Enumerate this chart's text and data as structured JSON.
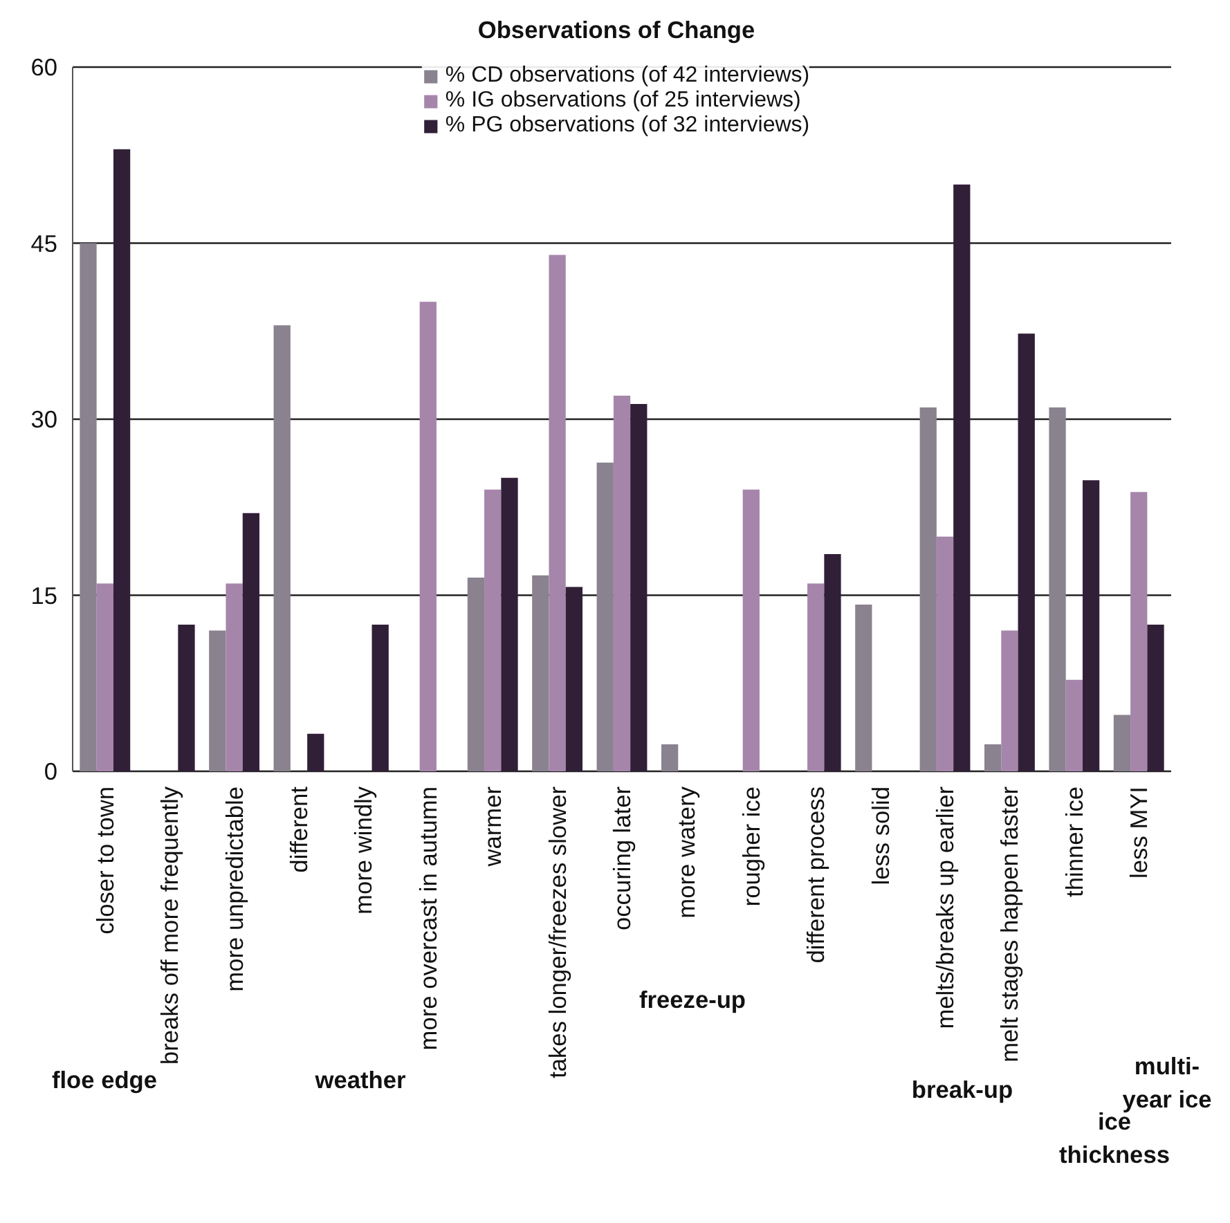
{
  "chart_data": {
    "type": "bar",
    "title": "Observations of Change",
    "categories": [
      "closer to town",
      "breaks off more frequently",
      "more unpredictable",
      "different",
      "more windly",
      "more overcast in autumn",
      "warmer",
      "takes longer/freezes slower",
      "occuring later",
      "more watery",
      "rougher ice",
      "different process",
      "less solid",
      "melts/breaks up earlier",
      "melt stages happen faster",
      "thinner ice",
      "less MYI"
    ],
    "series": [
      {
        "name": "% CD observations (of 42 interviews)",
        "color": "#8a828f",
        "values": [
          45,
          0,
          12,
          38,
          0,
          0,
          16.5,
          16.7,
          26.3,
          2.3,
          0,
          0,
          14.2,
          31,
          2.3,
          31,
          4.8
        ]
      },
      {
        "name": "% IG observations (of 25 interviews)",
        "color": "#a685ab",
        "values": [
          16,
          0,
          16,
          0,
          0,
          40,
          24,
          44,
          32,
          0,
          24,
          16,
          0,
          20,
          12,
          7.8,
          23.8
        ]
      },
      {
        "name": "% PG observations (of 32 interviews)",
        "color": "#311f38",
        "values": [
          53,
          12.5,
          22,
          3.2,
          12.5,
          0,
          25,
          15.7,
          31.3,
          0,
          0,
          18.5,
          0,
          50,
          37.3,
          24.8,
          12.5
        ]
      }
    ],
    "ylim": [
      0,
      60
    ],
    "yticks": [
      0,
      15,
      30,
      45,
      60
    ],
    "grid": "y",
    "legend": "top",
    "annotations": [
      "floe edge",
      "weather",
      "freeze-up",
      "break-up",
      "ice thickness",
      "multi-year ice"
    ]
  }
}
